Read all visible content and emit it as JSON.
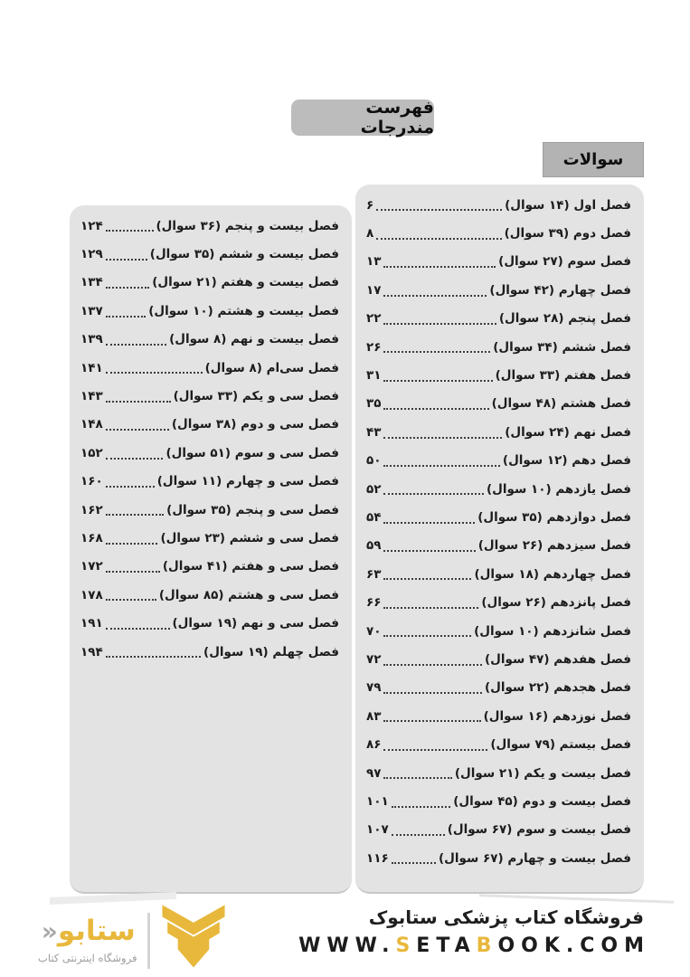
{
  "colors": {
    "gold": "#e8b83c",
    "panel": "#e3e3e3",
    "badge": "#bcbcbc",
    "label-box": "#b3b3b3",
    "ink": "#1c1c1c"
  },
  "header": {
    "toc_badge": "فهرست مندرجات",
    "section_label": "سوالات"
  },
  "toc": {
    "right_column": [
      {
        "title": "فصل اول (۱۴ سوال)",
        "page": "۶"
      },
      {
        "title": "فصل دوم (۳۹ سوال)",
        "page": "۸"
      },
      {
        "title": "فصل سوم (۲۷ سوال)",
        "page": "۱۳"
      },
      {
        "title": "فصل چهارم (۴۲ سوال)",
        "page": "۱۷"
      },
      {
        "title": "فصل پنجم (۲۸ سوال)",
        "page": "۲۲"
      },
      {
        "title": "فصل ششم (۳۴ سوال)",
        "page": "۲۶"
      },
      {
        "title": "فصل هفتم (۳۳ سوال)",
        "page": "۳۱"
      },
      {
        "title": "فصل هشتم (۴۸ سوال)",
        "page": "۳۵"
      },
      {
        "title": "فصل نهم (۲۴ سوال)",
        "page": "۴۳"
      },
      {
        "title": "فصل دهم (۱۲ سوال)",
        "page": "۵۰"
      },
      {
        "title": "فصل یازدهم (۱۰ سوال)",
        "page": "۵۲"
      },
      {
        "title": "فصل دوازدهم (۳۵ سوال)",
        "page": "۵۴"
      },
      {
        "title": "فصل سیزدهم (۲۶ سوال)",
        "page": "۵۹"
      },
      {
        "title": "فصل چهاردهم (۱۸ سوال)",
        "page": "۶۳"
      },
      {
        "title": "فصل پانزدهم (۲۶ سوال)",
        "page": "۶۶"
      },
      {
        "title": "فصل شانزدهم (۱۰ سوال)",
        "page": "۷۰"
      },
      {
        "title": "فصل هفدهم (۴۷ سوال)",
        "page": "۷۲"
      },
      {
        "title": "فصل هجدهم (۲۲ سوال)",
        "page": "۷۹"
      },
      {
        "title": "فصل نوزدهم (۱۶ سوال)",
        "page": "۸۳"
      },
      {
        "title": "فصل بیستم (۷۹ سوال)",
        "page": "۸۶"
      },
      {
        "title": "فصل بیست و یکم (۲۱ سوال)",
        "page": "۹۷"
      },
      {
        "title": "فصل بیست و دوم (۴۵ سوال)",
        "page": "۱۰۱"
      },
      {
        "title": "فصل بیست و سوم (۶۷ سوال)",
        "page": "۱۰۷"
      },
      {
        "title": "فصل بیست و چهارم (۶۷ سوال)",
        "page": "۱۱۶"
      }
    ],
    "left_column": [
      {
        "title": "فصل بیست و پنجم (۳۶ سوال)",
        "page": "۱۲۴"
      },
      {
        "title": "فصل بیست و ششم (۳۵ سوال)",
        "page": "۱۲۹"
      },
      {
        "title": "فصل بیست و هفتم (۲۱ سوال)",
        "page": "۱۳۴"
      },
      {
        "title": "فصل بیست و هشتم (۱۰ سوال)",
        "page": "۱۳۷"
      },
      {
        "title": "فصل بیست و نهم (۸ سوال)",
        "page": "۱۳۹"
      },
      {
        "title": "فصل سی‌ام (۸ سوال)",
        "page": "۱۴۱"
      },
      {
        "title": "فصل سی و یکم (۳۳ سوال)",
        "page": "۱۴۳"
      },
      {
        "title": "فصل سی و دوم (۳۸ سوال)",
        "page": "۱۴۸"
      },
      {
        "title": "فصل سی و سوم (۵۱ سوال)",
        "page": "۱۵۲"
      },
      {
        "title": "فصل سی و چهارم (۱۱ سوال)",
        "page": "۱۶۰"
      },
      {
        "title": "فصل سی و پنجم (۳۵ سوال)",
        "page": "۱۶۲"
      },
      {
        "title": "فصل سی و ششم (۲۳ سوال)",
        "page": "۱۶۸"
      },
      {
        "title": "فصل سی و هفتم (۴۱ سوال)",
        "page": "۱۷۲"
      },
      {
        "title": "فصل سی و هشتم (۸۵ سوال)",
        "page": "۱۷۸"
      },
      {
        "title": "فصل سی و نهم (۱۹ سوال)",
        "page": "۱۹۱"
      },
      {
        "title": "فصل چهلم (۱۹ سوال)",
        "page": "۱۹۴"
      }
    ]
  },
  "footer": {
    "store_title": "فروشگاه کتاب پزشکی ستابوک",
    "url_segments": [
      {
        "text": "WWW.",
        "color": "dark"
      },
      {
        "text": "S",
        "color": "gold"
      },
      {
        "text": "ETA",
        "color": "dark"
      },
      {
        "text": "B",
        "color": "gold"
      },
      {
        "text": "OOK.COM",
        "color": "dark"
      }
    ],
    "logo": {
      "wordmark": "ستابو",
      "kaf_symbol": "«",
      "tagline": "فروشگاه اینترنتی کتاب"
    }
  }
}
